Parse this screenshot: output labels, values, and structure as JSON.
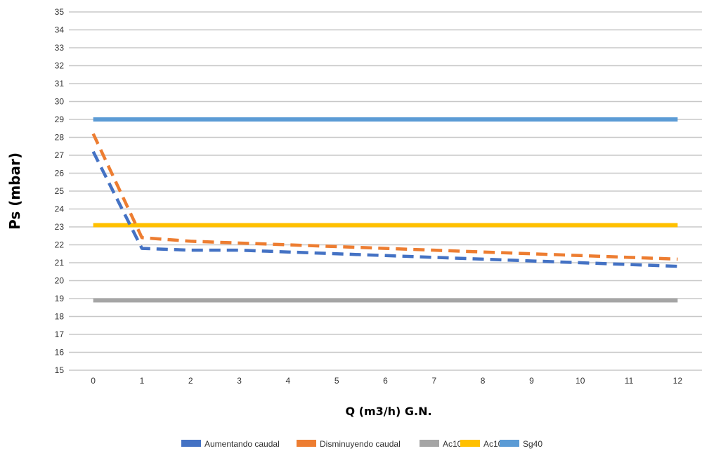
{
  "chart_data": {
    "type": "line",
    "title": "",
    "xlabel": "Q (m3/h) G.N.",
    "ylabel": "Ps (mbar)",
    "x": [
      0,
      1,
      2,
      3,
      4,
      5,
      6,
      7,
      8,
      9,
      10,
      11,
      12
    ],
    "xlim": [
      -0.5,
      12.5
    ],
    "ylim": [
      15,
      35
    ],
    "yticks": [
      15,
      16,
      17,
      18,
      19,
      20,
      21,
      22,
      23,
      24,
      25,
      26,
      27,
      28,
      29,
      30,
      31,
      32,
      33,
      34,
      35
    ],
    "grid": true,
    "legend_position": "bottom",
    "series": [
      {
        "name": "Aumentando caudal",
        "color": "#4472C4",
        "dashed": true,
        "values": [
          27.2,
          21.8,
          21.7,
          21.7,
          21.6,
          21.5,
          21.4,
          21.3,
          21.2,
          21.1,
          21.0,
          20.9,
          20.8
        ]
      },
      {
        "name": "Disminuyendo caudal",
        "color": "#ED7D31",
        "dashed": true,
        "values": [
          28.2,
          22.4,
          22.2,
          22.1,
          22.0,
          21.9,
          21.8,
          21.7,
          21.6,
          21.5,
          21.4,
          21.3,
          21.2
        ]
      },
      {
        "name": "Ac10",
        "color": "#A5A5A5",
        "dashed": false,
        "values": [
          18.9,
          18.9,
          18.9,
          18.9,
          18.9,
          18.9,
          18.9,
          18.9,
          18.9,
          18.9,
          18.9,
          18.9,
          18.9
        ]
      },
      {
        "name": "Ac10",
        "color": "#FFC000",
        "dashed": false,
        "values": [
          23.1,
          23.1,
          23.1,
          23.1,
          23.1,
          23.1,
          23.1,
          23.1,
          23.1,
          23.1,
          23.1,
          23.1,
          23.1
        ]
      },
      {
        "name": "Sg40",
        "color": "#5B9BD5",
        "dashed": false,
        "values": [
          29.0,
          29.0,
          29.0,
          29.0,
          29.0,
          29.0,
          29.0,
          29.0,
          29.0,
          29.0,
          29.0,
          29.0,
          29.0
        ]
      }
    ]
  }
}
